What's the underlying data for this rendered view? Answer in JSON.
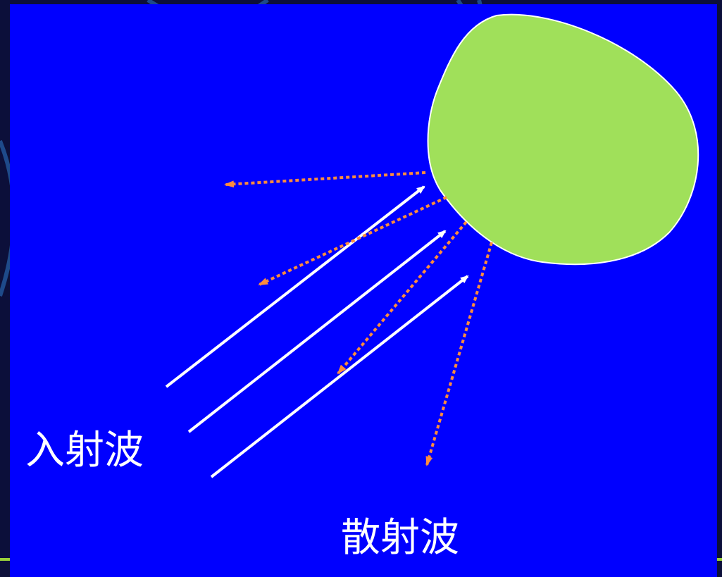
{
  "diagram": {
    "incident_label": "入射波",
    "scattered_label": "散射波"
  },
  "colors": {
    "background": "#0000ff",
    "scatterer_fill": "#a0e05a",
    "incident_wave": "#ffffff",
    "scattered_wave": "#ff8c3c"
  }
}
